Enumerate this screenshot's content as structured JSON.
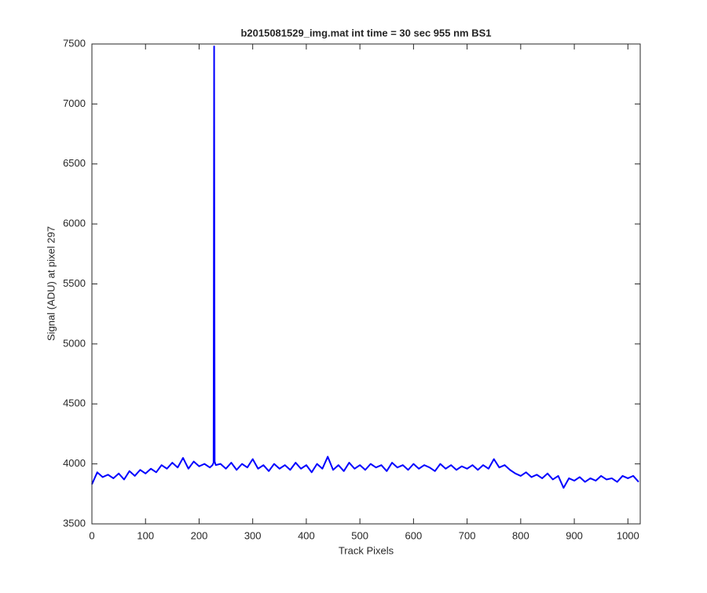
{
  "chart_data": {
    "type": "line",
    "title": "b2015081529_img.mat int time = 30 sec  955 nm BS1",
    "x_label": "Track Pixels",
    "y_label": "Signal (ADU) at pixel 297",
    "x": [
      0,
      10,
      20,
      30,
      40,
      50,
      60,
      70,
      80,
      90,
      100,
      110,
      120,
      130,
      140,
      150,
      160,
      170,
      180,
      190,
      200,
      210,
      220,
      225,
      227,
      228,
      229,
      231,
      240,
      250,
      260,
      270,
      280,
      290,
      300,
      310,
      320,
      330,
      340,
      350,
      360,
      370,
      380,
      390,
      400,
      410,
      420,
      430,
      440,
      450,
      460,
      470,
      480,
      490,
      500,
      510,
      520,
      530,
      540,
      550,
      560,
      570,
      580,
      590,
      600,
      610,
      620,
      630,
      640,
      650,
      660,
      670,
      680,
      690,
      700,
      710,
      720,
      730,
      740,
      750,
      760,
      770,
      780,
      790,
      800,
      810,
      820,
      830,
      840,
      850,
      860,
      870,
      880,
      890,
      900,
      910,
      920,
      930,
      940,
      950,
      960,
      970,
      980,
      990,
      1000,
      1010,
      1020
    ],
    "values": [
      3830,
      3930,
      3890,
      3910,
      3880,
      3920,
      3870,
      3940,
      3900,
      3950,
      3920,
      3960,
      3930,
      3990,
      3960,
      4010,
      3970,
      4050,
      3960,
      4020,
      3980,
      4000,
      3970,
      3990,
      4010,
      7480,
      4020,
      3990,
      4000,
      3960,
      4010,
      3950,
      4000,
      3970,
      4040,
      3960,
      3990,
      3940,
      4000,
      3960,
      3990,
      3950,
      4010,
      3960,
      3990,
      3930,
      4000,
      3960,
      4060,
      3950,
      3990,
      3940,
      4010,
      3960,
      3990,
      3950,
      4000,
      3970,
      3990,
      3940,
      4010,
      3970,
      3990,
      3950,
      4000,
      3960,
      3990,
      3970,
      3940,
      4000,
      3960,
      3990,
      3950,
      3980,
      3960,
      3990,
      3950,
      3990,
      3960,
      4040,
      3970,
      3990,
      3950,
      3920,
      3900,
      3930,
      3890,
      3910,
      3880,
      3920,
      3870,
      3900,
      3800,
      3880,
      3860,
      3890,
      3850,
      3880,
      3860,
      3900,
      3870,
      3880,
      3850,
      3900,
      3880,
      3900,
      3850
    ],
    "color": "#0000ff",
    "xlim": [
      0,
      1023
    ],
    "xticks": [
      0,
      100,
      200,
      300,
      400,
      500,
      600,
      700,
      800,
      900,
      1000
    ],
    "ylim": [
      3500,
      7500
    ],
    "yticks": [
      3500,
      4000,
      4500,
      5000,
      5500,
      6000,
      6500,
      7000,
      7500
    ],
    "grid": false
  }
}
